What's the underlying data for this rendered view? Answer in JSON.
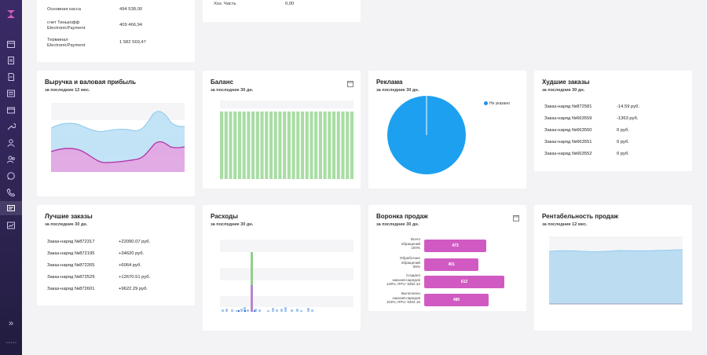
{
  "colors": {
    "accent": "#d15ac2",
    "pie": "#1ea0f0",
    "green_bar": "#a8dda4",
    "blue_area": "#a9d6f2",
    "pink_area": "#e3a6e0"
  },
  "sidebar": {
    "icons": [
      "logo-icon",
      "calendar-icon",
      "clipboard-icon",
      "document-icon",
      "list-icon",
      "box-icon",
      "wrench-icon",
      "user-icon",
      "users-icon",
      "whatsapp-icon",
      "phone-icon",
      "reports-icon",
      "chart-board-icon",
      "expand-icon"
    ],
    "expand_label": "»"
  },
  "cash": {
    "rows": [
      {
        "label": "Основная касса",
        "value": "494 538,00"
      },
      {
        "label": "счет Тинькофф ElectronicPayment",
        "value": "409 466,94"
      },
      {
        "label": "Терминал ElectronicPayment",
        "value": "1 582 569,47"
      }
    ]
  },
  "hoz": {
    "label": "Хоз. Часть",
    "value": "0,00"
  },
  "revenue": {
    "title": "Выручка и валовая прибыль",
    "subtitle": "за последние 12 мес."
  },
  "balance": {
    "title": "Баланс",
    "subtitle": "за последние 30 дн.",
    "bar_count": 30
  },
  "ads": {
    "title": "Реклама",
    "subtitle": "за последние 30 дн.",
    "legend": "Не указано"
  },
  "worst": {
    "title": "Худшие заказы",
    "subtitle": "за последние 30 дн.",
    "rows": [
      {
        "label": "Заказ-наряд №872581",
        "value": "-14.59 руб."
      },
      {
        "label": "Заказ-наряд №663559",
        "value": "-1363 руб."
      },
      {
        "label": "Заказ-наряд №663550",
        "value": "0 руб."
      },
      {
        "label": "Заказ-наряд №663551",
        "value": "0 руб."
      },
      {
        "label": "Заказ-наряд №663552",
        "value": "0 руб."
      }
    ]
  },
  "best": {
    "title": "Лучшие заказы",
    "subtitle": "за последние 30 дн.",
    "rows": [
      {
        "label": "Заказ-наряд №872317",
        "value": "+22090.07 руб."
      },
      {
        "label": "Заказ-наряд №872195",
        "value": "+34620 руб."
      },
      {
        "label": "Заказ-наряд №872265",
        "value": "+6064 руб."
      },
      {
        "label": "Заказ-наряд №872529",
        "value": "+12670.51 руб."
      },
      {
        "label": "Заказ-наряд №872601",
        "value": "+9622.29 руб."
      }
    ]
  },
  "expenses": {
    "title": "Расходы",
    "subtitle": "за последние 30 дн."
  },
  "funnel": {
    "title": "Воронка продаж",
    "subtitle": "за последние 30 дн.",
    "rows": [
      {
        "label_lines": [
          "Всего",
          "обращений",
          "100%"
        ],
        "value": "473",
        "fraction": 0.58
      },
      {
        "label_lines": [
          "Обработано",
          "обращений",
          "85%"
        ],
        "value": "401",
        "fraction": 0.5
      },
      {
        "label_lines": [
          "Создано",
          "заказов-нарядов",
          "129%, RPU: 9352.42"
        ],
        "value": "612",
        "fraction": 0.75
      },
      {
        "label_lines": [
          "Выполнено",
          "заказов-нарядов",
          "103%, RPU: 9304.16"
        ],
        "value": "486",
        "fraction": 0.6
      }
    ]
  },
  "profitability": {
    "title": "Рентабельность продаж",
    "subtitle": "за последние 12 мес."
  }
}
